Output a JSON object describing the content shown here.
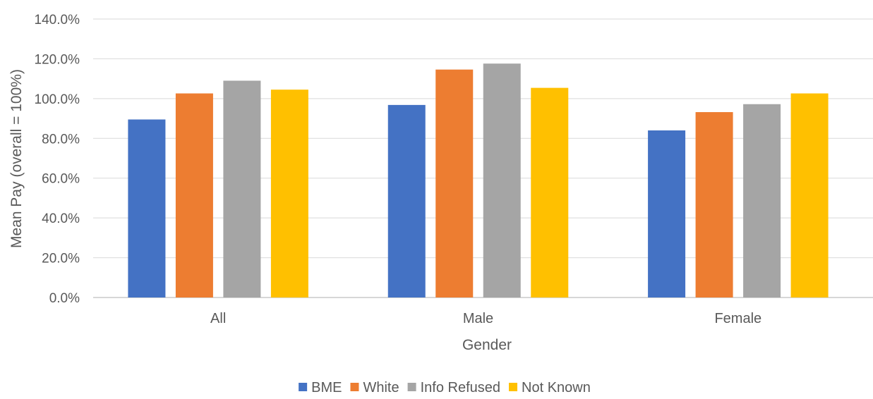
{
  "chart_data": {
    "type": "bar",
    "title": "",
    "xlabel": "Gender",
    "ylabel": "Mean Pay (overall = 100%)",
    "ylim": [
      0,
      140
    ],
    "yticks": [
      "0.0%",
      "20.0%",
      "40.0%",
      "60.0%",
      "80.0%",
      "100.0%",
      "120.0%",
      "140.0%"
    ],
    "grid": true,
    "legend_position": "bottom",
    "categories": [
      "All",
      "Male",
      "Female"
    ],
    "series": [
      {
        "name": "BME",
        "color": "#4472C4",
        "values": [
          89.5,
          96.8,
          84.0
        ]
      },
      {
        "name": "White",
        "color": "#ED7D31",
        "values": [
          102.6,
          114.6,
          93.2
        ]
      },
      {
        "name": "Info Refused",
        "color": "#A5A5A5",
        "values": [
          109.0,
          117.6,
          97.2
        ]
      },
      {
        "name": "Not Known",
        "color": "#FFC000",
        "values": [
          104.5,
          105.4,
          102.6
        ]
      }
    ]
  }
}
